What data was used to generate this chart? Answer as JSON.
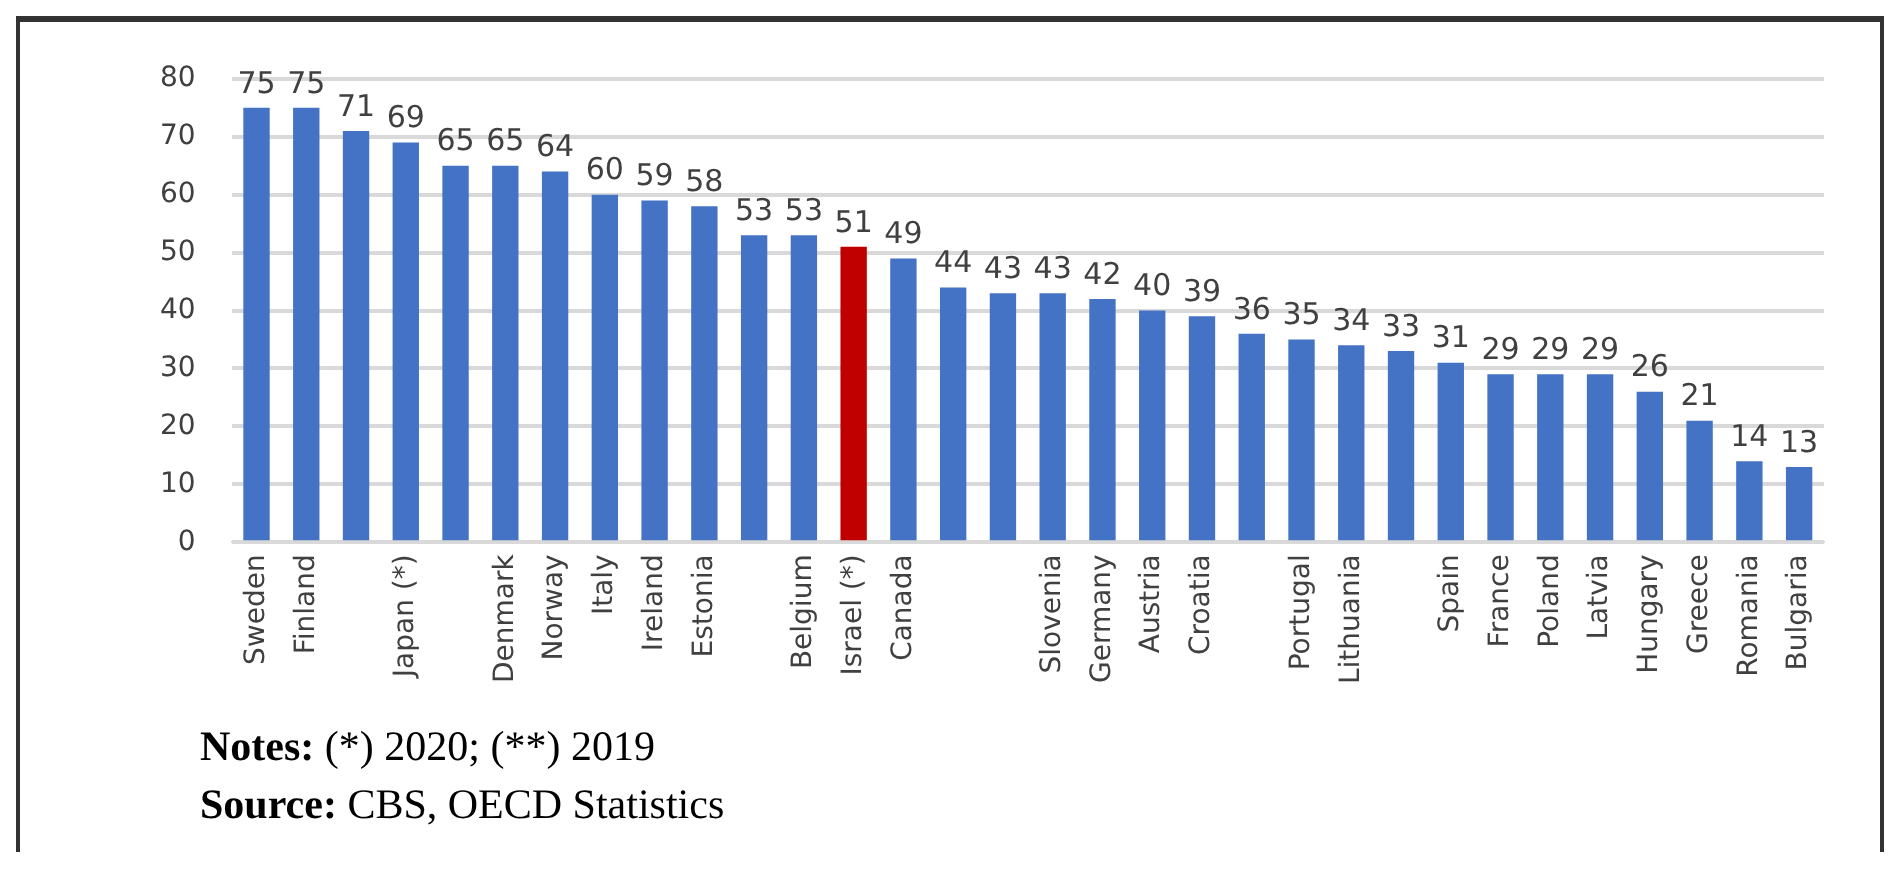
{
  "chart_data": {
    "type": "bar",
    "categories": [
      "Sweden",
      "Finland",
      null,
      "Japan (*)",
      null,
      "Denmark",
      "Norway",
      "Italy",
      "Ireland",
      "Estonia",
      null,
      "Belgium",
      "Israel (*)",
      "Canada",
      null,
      null,
      "Slovenia",
      "Germany",
      "Austria",
      "Croatia",
      null,
      "Portugal",
      "Lithuania",
      null,
      "Spain",
      "France",
      "Poland",
      "Latvia",
      "Hungary",
      "Greece",
      "Romania",
      "Bulgaria"
    ],
    "values": [
      75,
      75,
      71,
      69,
      65,
      65,
      64,
      60,
      59,
      58,
      53,
      53,
      51,
      49,
      44,
      43,
      43,
      42,
      40,
      39,
      36,
      35,
      34,
      33,
      31,
      29,
      29,
      29,
      26,
      21,
      14,
      13
    ],
    "colors": [
      "#4472c4",
      "#4472c4",
      "#4472c4",
      "#4472c4",
      "#4472c4",
      "#4472c4",
      "#4472c4",
      "#4472c4",
      "#4472c4",
      "#4472c4",
      "#4472c4",
      "#4472c4",
      "#c00000",
      "#4472c4",
      "#4472c4",
      "#4472c4",
      "#4472c4",
      "#4472c4",
      "#4472c4",
      "#4472c4",
      "#4472c4",
      "#4472c4",
      "#4472c4",
      "#4472c4",
      "#4472c4",
      "#4472c4",
      "#4472c4",
      "#4472c4",
      "#4472c4",
      "#4472c4",
      "#4472c4",
      "#4472c4"
    ],
    "ylim": [
      0,
      80
    ],
    "yticks": [
      0,
      10,
      20,
      30,
      40,
      50,
      60,
      70,
      80
    ],
    "grid": "y",
    "legend": false,
    "data_labels": true,
    "annotations": [
      "Notes: (*) 2020; (**) 2019",
      "Source: CBS, OECD Statistics"
    ]
  }
}
